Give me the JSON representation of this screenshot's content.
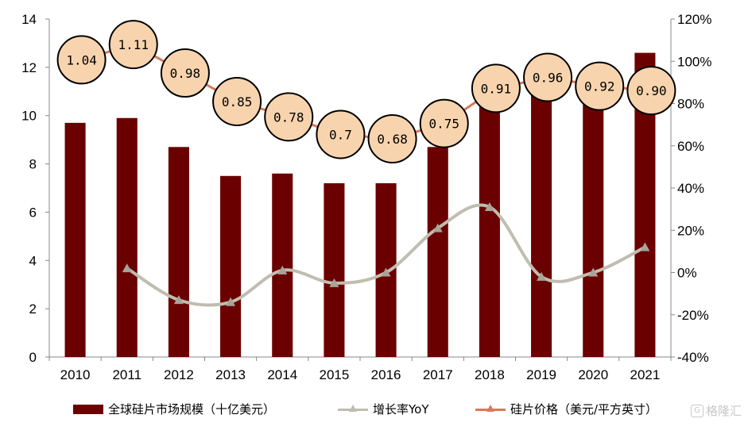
{
  "chart_data": {
    "type": "bar",
    "categories": [
      "2010",
      "2011",
      "2012",
      "2013",
      "2014",
      "2015",
      "2016",
      "2017",
      "2018",
      "2019",
      "2020",
      "2021"
    ],
    "y_left": {
      "ticks": [
        "0",
        "2",
        "4",
        "6",
        "8",
        "10",
        "12",
        "14"
      ],
      "ylim": [
        0,
        14
      ]
    },
    "y_right": {
      "ticks": [
        "-40%",
        "-20%",
        "0%",
        "20%",
        "40%",
        "60%",
        "80%",
        "100%",
        "120%"
      ],
      "ylim": [
        -40,
        120
      ]
    },
    "series": [
      {
        "name": "全球硅片市场规模（十亿美元）",
        "kind": "bar",
        "axis": "left",
        "color": "#6b0000",
        "values": [
          9.7,
          9.9,
          8.7,
          7.5,
          7.6,
          7.2,
          7.2,
          8.7,
          11.4,
          11.2,
          11.2,
          12.6
        ]
      },
      {
        "name": "增长率YoY",
        "kind": "line",
        "axis": "right",
        "color": "#c0bdb0",
        "values": [
          null,
          2,
          -13,
          -14,
          1,
          -5,
          0,
          21,
          31,
          -2,
          0,
          12
        ]
      },
      {
        "name": "硅片价格（美元/平方英寸）",
        "kind": "line-labels",
        "color": "#d9785a",
        "label_fill": "#f8d4ae",
        "labels": [
          "1.04",
          "1.11",
          "0.98",
          "0.85",
          "0.78",
          "0.7",
          "0.68",
          "0.75",
          "0.91",
          "0.96",
          "0.92",
          "0.90"
        ],
        "values": [
          1.04,
          1.11,
          0.98,
          0.85,
          0.78,
          0.7,
          0.68,
          0.75,
          0.91,
          0.96,
          0.92,
          0.9
        ]
      }
    ],
    "legend_placement": "bottom",
    "grid": false
  },
  "watermark": {
    "icon": "G",
    "text": "格隆汇"
  }
}
